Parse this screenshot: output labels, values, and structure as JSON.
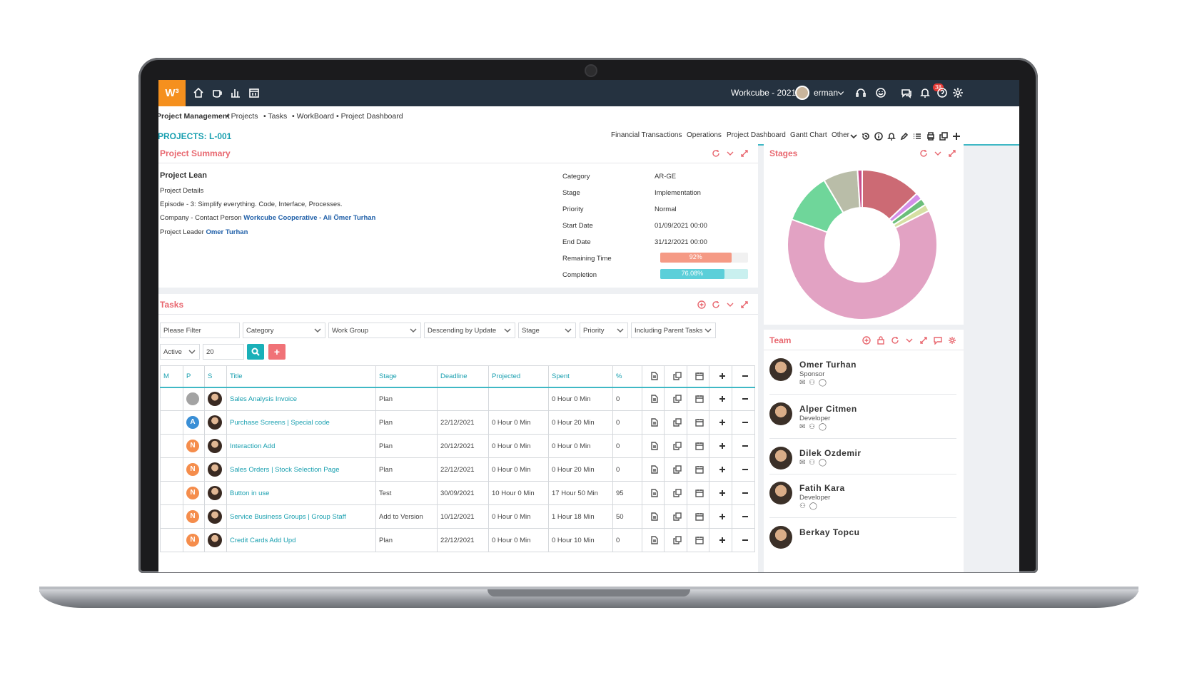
{
  "topbar": {
    "logo": "W³",
    "company_year": "Workcube - 2021",
    "user": "erman",
    "notification_count": "38"
  },
  "breadcrumb": [
    "Project Management",
    "Projects",
    "Tasks",
    "WorkBoard",
    "Project Dashboard"
  ],
  "page": {
    "title": "PROJECTS: L-001",
    "tabs": [
      "Financial Transactions",
      "Operations",
      "Project Dashboard",
      "Gantt Chart",
      "Other"
    ]
  },
  "summary": {
    "heading": "Project Summary",
    "project_name": "Project Lean",
    "details_label": "Project Details",
    "episode": "Episode - 3: Simplify everything. Code, Interface, Processes.",
    "company_label": "Company - Contact Person",
    "company_value": "Workcube Cooperative - Ali Ömer Turhan",
    "leader_label": "Project Leader",
    "leader_value": "Omer Turhan",
    "fields": [
      {
        "label": "Category",
        "value": "AR-GE"
      },
      {
        "label": "Stage",
        "value": "Implementation"
      },
      {
        "label": "Priority",
        "value": "Normal"
      },
      {
        "label": "Start Date",
        "value": "01/09/2021 00:00"
      },
      {
        "label": "End Date",
        "value": "31/12/2021 00:00"
      }
    ],
    "remaining_label": "Remaining Time",
    "remaining_value": "92%",
    "remaining_fraction": 0.92,
    "completion_label": "Completion",
    "completion_value": "76.08%",
    "completion_fraction": 0.7608,
    "remaining_color": "#f59a85",
    "completion_color": "#5ccfd9"
  },
  "stages": {
    "heading": "Stages"
  },
  "chart_data": {
    "type": "pie",
    "donut": true,
    "slices": [
      {
        "value": 13,
        "color": "#cc6a74"
      },
      {
        "value": 1.5,
        "color": "#d38ee8"
      },
      {
        "value": 1.5,
        "color": "#6cbe7a"
      },
      {
        "value": 1.5,
        "color": "#d6dfa3"
      },
      {
        "value": 63,
        "color": "#e2a2c3"
      },
      {
        "value": 11,
        "color": "#6fd69a"
      },
      {
        "value": 7.5,
        "color": "#b9bda8"
      },
      {
        "value": 1,
        "color": "#c94f8a"
      }
    ]
  },
  "tasks": {
    "heading": "Tasks",
    "filters": {
      "keyword_placeholder": "Please Filter",
      "category": "Category",
      "work_group": "Work Group",
      "order": "Descending by Update",
      "stage": "Stage",
      "priority": "Priority",
      "parent": "Including Parent Tasks",
      "status": "Active",
      "rows": "20"
    },
    "columns": [
      "M",
      "P",
      "S",
      "Title",
      "Stage",
      "Deadline",
      "Projected",
      "Spent",
      "%"
    ],
    "rows": [
      {
        "p": "",
        "p_color": "#a3a3a3",
        "title": "Sales Analysis Invoice",
        "stage": "Plan",
        "deadline": "",
        "projected": "",
        "spent": "0 Hour 0 Min",
        "pct": "0"
      },
      {
        "p": "A",
        "p_color": "#3a8fd6",
        "title": "Purchase Screens | Special code",
        "stage": "Plan",
        "deadline": "22/12/2021",
        "projected": "0 Hour 0 Min",
        "spent": "0 Hour 20 Min",
        "pct": "0"
      },
      {
        "p": "N",
        "p_color": "#f58d4c",
        "title": "Interaction Add",
        "stage": "Plan",
        "deadline": "20/12/2021",
        "projected": "0 Hour 0 Min",
        "spent": "0 Hour 0 Min",
        "pct": "0"
      },
      {
        "p": "N",
        "p_color": "#f58d4c",
        "title": "Sales Orders | Stock Selection Page",
        "stage": "Plan",
        "deadline": "22/12/2021",
        "projected": "0 Hour 0 Min",
        "spent": "0 Hour 20 Min",
        "pct": "0"
      },
      {
        "p": "N",
        "p_color": "#f58d4c",
        "title": "Button in use",
        "stage": "Test",
        "deadline": "30/09/2021",
        "projected": "10 Hour 0 Min",
        "spent": "17 Hour 50 Min",
        "pct": "95"
      },
      {
        "p": "N",
        "p_color": "#f58d4c",
        "title": "Service Business Groups | Group Staff",
        "stage": "Add to Version",
        "deadline": "10/12/2021",
        "projected": "0 Hour 0 Min",
        "spent": "1 Hour 18 Min",
        "pct": "50"
      },
      {
        "p": "N",
        "p_color": "#f58d4c",
        "title": "Credit Cards Add Upd",
        "stage": "Plan",
        "deadline": "22/12/2021",
        "projected": "0 Hour 0 Min",
        "spent": "0 Hour 10 Min",
        "pct": "0"
      }
    ]
  },
  "team": {
    "heading": "Team",
    "members": [
      {
        "name": "Omer Turhan",
        "role": "Sponsor"
      },
      {
        "name": "Alper Citmen",
        "role": "Developer"
      },
      {
        "name": "Dilek Ozdemir",
        "role": ""
      },
      {
        "name": "Fatih Kara",
        "role": "Developer"
      },
      {
        "name": "Berkay Topcu",
        "role": ""
      }
    ]
  }
}
